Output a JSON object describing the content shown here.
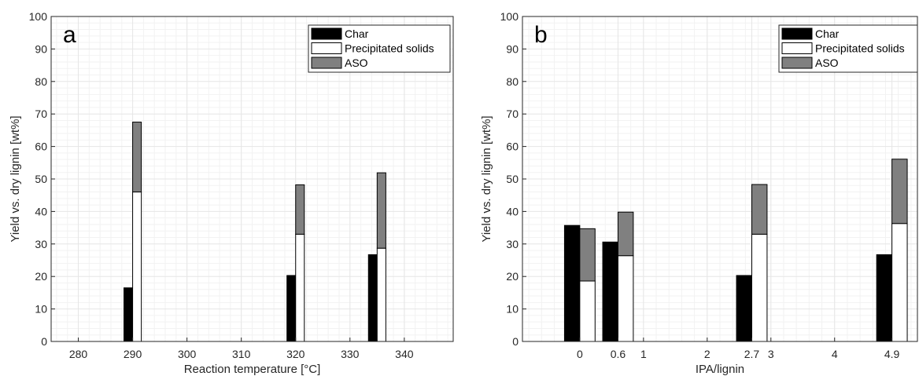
{
  "colors": {
    "char": "#000000",
    "precipitated": "#ffffff",
    "aso": "#808080",
    "grid": "#e6e6e6",
    "minor_grid": "#f2f2f2",
    "axis": "#262626"
  },
  "legend": {
    "char": "Char",
    "precipitated": "Precipitated solids",
    "aso": "ASO"
  },
  "chart_data": [
    {
      "type": "bar",
      "panel_label": "a",
      "xlabel": "Reaction temperature [°C]",
      "ylabel": "Yield vs. dry lignin [wt%]",
      "xlim": [
        275,
        349
      ],
      "ylim": [
        0,
        100
      ],
      "x_ticks": [
        280,
        290,
        300,
        310,
        320,
        330,
        340
      ],
      "y_ticks": [
        0,
        10,
        20,
        30,
        40,
        50,
        60,
        70,
        80,
        90,
        100
      ],
      "grid": true,
      "minor_grid": true,
      "legend_position": "top-right",
      "bar_width": 1.6,
      "groups": [
        {
          "x": 290,
          "char": 16.5,
          "precipitated": 46,
          "aso": 21.5
        },
        {
          "x": 320,
          "char": 20.3,
          "precipitated": 33,
          "aso": 15.2
        },
        {
          "x": 335,
          "char": 26.7,
          "precipitated": 28.7,
          "aso": 23.2
        }
      ]
    },
    {
      "type": "bar",
      "panel_label": "b",
      "xlabel": "IPA/lignin",
      "ylabel": "Yield vs. dry lignin [wt%]",
      "xlim": [
        -0.9,
        5.3
      ],
      "ylim": [
        0,
        100
      ],
      "x_ticks": [
        0,
        0.6,
        1,
        2,
        2.7,
        3,
        4,
        4.9
      ],
      "y_ticks": [
        0,
        10,
        20,
        30,
        40,
        50,
        60,
        70,
        80,
        90,
        100
      ],
      "grid": true,
      "minor_grid": true,
      "legend_position": "top-right",
      "bar_width": 0.24,
      "groups": [
        {
          "x": 0,
          "char": 35.7,
          "precipitated": 18.6,
          "aso": 16.1
        },
        {
          "x": 0.6,
          "char": 30.6,
          "precipitated": 26.4,
          "aso": 13.4
        },
        {
          "x": 2.7,
          "char": 20.3,
          "precipitated": 33,
          "aso": 15.3
        },
        {
          "x": 4.9,
          "char": 26.7,
          "precipitated": 36.3,
          "aso": 19.8
        }
      ]
    }
  ]
}
